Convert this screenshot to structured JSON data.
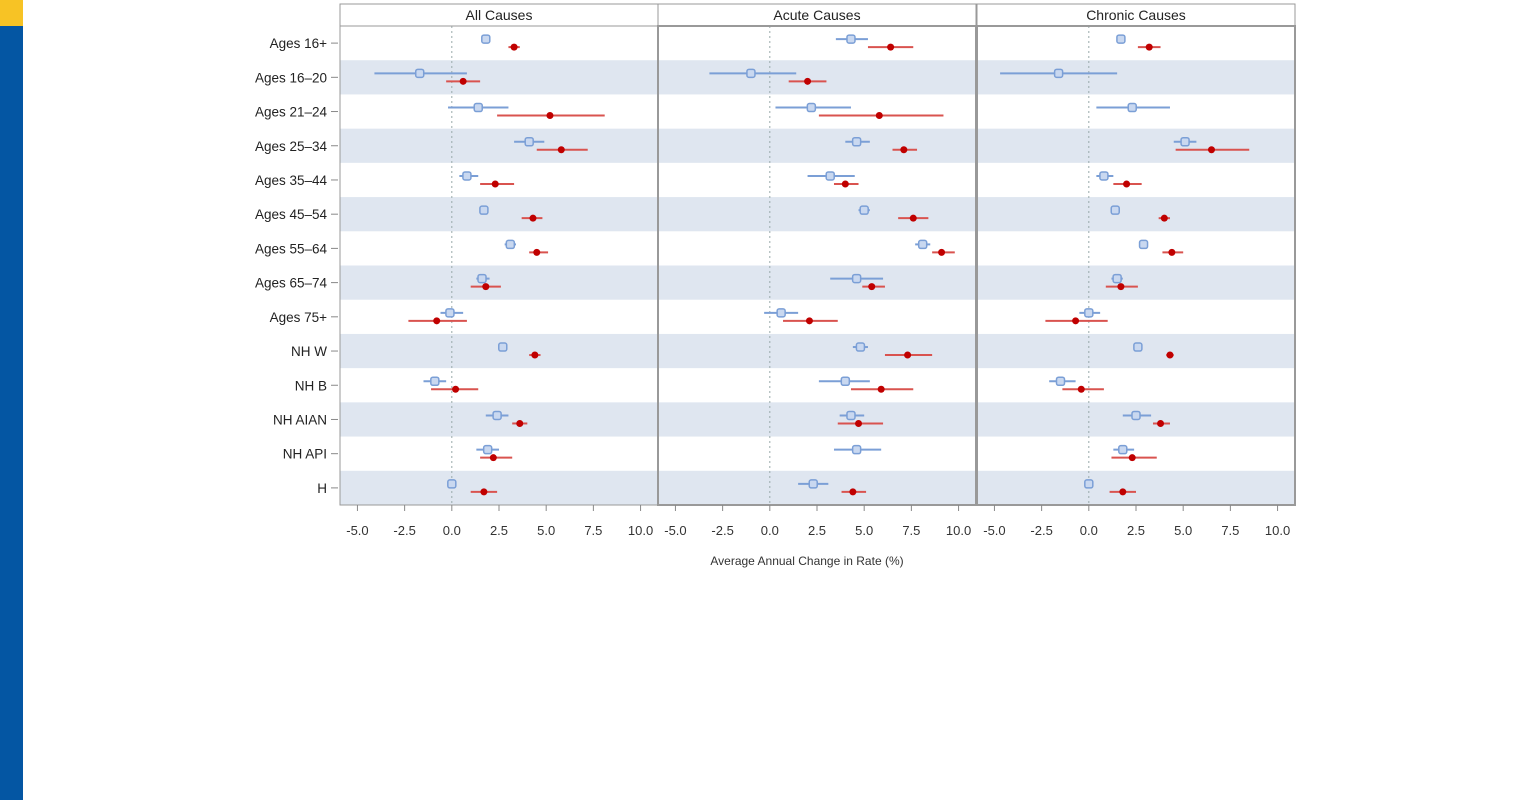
{
  "colors": {
    "brand_blue": "#0456a3",
    "brand_yellow": "#f7c325",
    "series_blue": "#7b9fd6",
    "series_red": "#c00000",
    "band": "#dfe6f0"
  },
  "chart_data": {
    "type": "scatter",
    "subtype": "forest-plot",
    "xlabel": "Average Annual Change in Rate (%)",
    "xlim": [
      -5.5,
      10.5
    ],
    "xticks": [
      "-5.0",
      "-2.5",
      "0.0",
      "2.5",
      "5.0",
      "7.5",
      "10.0"
    ],
    "xtick_values": [
      -5,
      -2.5,
      0,
      2.5,
      5,
      7.5,
      10
    ],
    "categories": [
      "Ages 16+",
      "Ages 16–20",
      "Ages 21–24",
      "Ages 25–34",
      "Ages 35–44",
      "Ages 45–54",
      "Ages 55–64",
      "Ages 65–74",
      "Ages 75+",
      "NH W",
      "NH B",
      "NH AIAN",
      "NH API",
      "H"
    ],
    "panels": [
      {
        "title": "All Causes",
        "blue": [
          [
            1.8,
            1.6,
            2.0
          ],
          [
            -1.7,
            -4.1,
            0.8
          ],
          [
            1.4,
            -0.2,
            3.0
          ],
          [
            4.1,
            3.3,
            4.9
          ],
          [
            0.8,
            0.4,
            1.4
          ],
          [
            1.7,
            1.5,
            1.9
          ],
          [
            3.1,
            2.8,
            3.4
          ],
          [
            1.6,
            1.3,
            2.0
          ],
          [
            -0.1,
            -0.6,
            0.6
          ],
          [
            2.7,
            2.5,
            2.9
          ],
          [
            -0.9,
            -1.5,
            -0.3
          ],
          [
            2.4,
            1.8,
            3.0
          ],
          [
            1.9,
            1.3,
            2.5
          ],
          [
            0.0,
            -0.2,
            0.2
          ]
        ],
        "red": [
          [
            3.3,
            3.0,
            3.6
          ],
          [
            0.6,
            -0.3,
            1.5
          ],
          [
            5.2,
            2.4,
            8.1
          ],
          [
            5.8,
            4.5,
            7.2
          ],
          [
            2.3,
            1.5,
            3.3
          ],
          [
            4.3,
            3.7,
            4.8
          ],
          [
            4.5,
            4.1,
            5.1
          ],
          [
            1.8,
            1.0,
            2.6
          ],
          [
            -0.8,
            -2.3,
            0.8
          ],
          [
            4.4,
            4.1,
            4.7
          ],
          [
            0.2,
            -1.1,
            1.4
          ],
          [
            3.6,
            3.2,
            4.0
          ],
          [
            2.2,
            1.5,
            3.2
          ],
          [
            1.7,
            1.0,
            2.4
          ]
        ]
      },
      {
        "title": "Acute Causes",
        "blue": [
          [
            4.3,
            3.5,
            5.2
          ],
          [
            -1.0,
            -3.2,
            1.4
          ],
          [
            2.2,
            0.3,
            4.3
          ],
          [
            4.6,
            4.0,
            5.3
          ],
          [
            3.2,
            2.0,
            4.5
          ],
          [
            5.0,
            4.7,
            5.3
          ],
          [
            8.1,
            7.7,
            8.5
          ],
          [
            4.6,
            3.2,
            6.0
          ],
          [
            0.6,
            -0.3,
            1.5
          ],
          [
            4.8,
            4.4,
            5.2
          ],
          [
            4.0,
            2.6,
            5.3
          ],
          [
            4.3,
            3.7,
            5.0
          ],
          [
            4.6,
            3.4,
            5.9
          ],
          [
            2.3,
            1.5,
            3.1
          ]
        ],
        "red": [
          [
            6.4,
            5.2,
            7.6
          ],
          [
            2.0,
            1.0,
            3.0
          ],
          [
            5.8,
            2.6,
            9.2
          ],
          [
            7.1,
            6.5,
            7.8
          ],
          [
            4.0,
            3.4,
            4.7
          ],
          [
            7.6,
            6.8,
            8.4
          ],
          [
            9.1,
            8.6,
            9.8
          ],
          [
            5.4,
            4.9,
            6.1
          ],
          [
            2.1,
            0.7,
            3.6
          ],
          [
            7.3,
            6.1,
            8.6
          ],
          [
            5.9,
            4.3,
            7.6
          ],
          [
            4.7,
            3.6,
            6.0
          ],
          null,
          [
            4.4,
            3.8,
            5.1
          ]
        ]
      },
      {
        "title": "Chronic Causes",
        "blue": [
          [
            1.7,
            1.5,
            1.9
          ],
          [
            -1.6,
            -4.7,
            1.5
          ],
          [
            2.3,
            0.4,
            4.3
          ],
          [
            5.1,
            4.5,
            5.7
          ],
          [
            0.8,
            0.4,
            1.3
          ],
          [
            1.4,
            1.2,
            1.6
          ],
          [
            2.9,
            2.7,
            3.1
          ],
          [
            1.5,
            1.2,
            1.8
          ],
          [
            0.0,
            -0.5,
            0.6
          ],
          [
            2.6,
            2.4,
            2.8
          ],
          [
            -1.5,
            -2.1,
            -0.7
          ],
          [
            2.5,
            1.8,
            3.3
          ],
          [
            1.8,
            1.3,
            2.4
          ],
          [
            0.0,
            -0.2,
            0.2
          ]
        ],
        "red": [
          [
            3.2,
            2.6,
            3.8
          ],
          null,
          null,
          [
            6.5,
            4.6,
            8.5
          ],
          [
            2.0,
            1.3,
            2.8
          ],
          [
            4.0,
            3.7,
            4.3
          ],
          [
            4.4,
            3.9,
            5.0
          ],
          [
            1.7,
            0.9,
            2.6
          ],
          [
            -0.7,
            -2.3,
            1.0
          ],
          [
            4.3,
            4.1,
            4.5
          ],
          [
            -0.4,
            -1.4,
            0.8
          ],
          [
            3.8,
            3.4,
            4.3
          ],
          [
            2.3,
            1.2,
            3.6
          ],
          [
            1.8,
            1.1,
            2.5
          ]
        ]
      }
    ],
    "value_format": "[estimate, ci_low, ci_high]",
    "grid": false
  }
}
